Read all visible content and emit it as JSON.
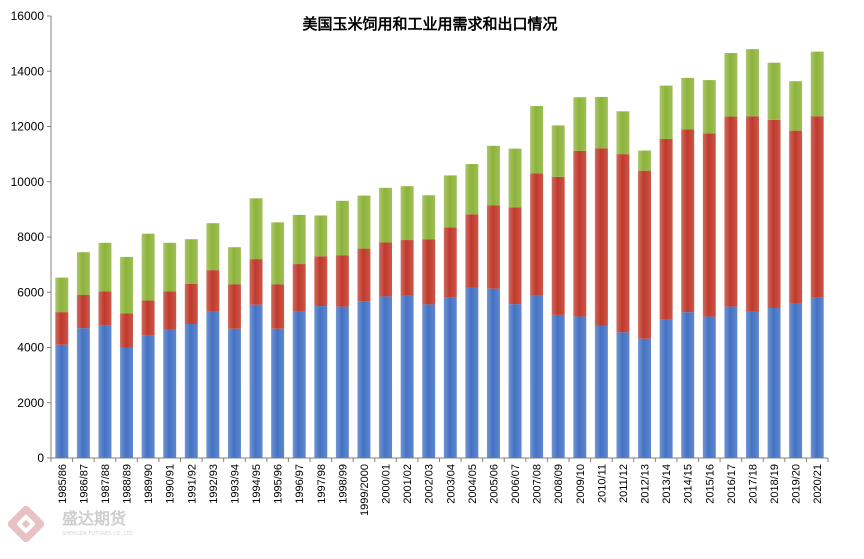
{
  "chart_data": {
    "type": "bar",
    "stacked": true,
    "title": "美国玉米饲用和工业用需求和出口情况",
    "xlabel": "",
    "ylabel": "",
    "ylim": [
      0,
      16000
    ],
    "yticks": [
      0,
      2000,
      4000,
      6000,
      8000,
      10000,
      12000,
      14000,
      16000
    ],
    "grid": false,
    "legend": "none",
    "categories": [
      "1985/86",
      "1986/87",
      "1987/88",
      "1988/89",
      "1989/90",
      "1990/91",
      "1991/92",
      "1992/93",
      "1993/94",
      "1994/95",
      "1995/96",
      "1996/97",
      "1997/98",
      "1998/99",
      "1999/2000",
      "2000/01",
      "2001/02",
      "2002/03",
      "2003/04",
      "2004/05",
      "2005/06",
      "2006/07",
      "2007/08",
      "2008/09",
      "2009/10",
      "2010/11",
      "2011/12",
      "2012/13",
      "2013/14",
      "2014/15",
      "2015/16",
      "2016/17",
      "2017/18",
      "2018/19",
      "2019/20",
      "2020/21"
    ],
    "series": [
      {
        "color": "#4472c4",
        "values": [
          4100,
          4700,
          4800,
          4000,
          4450,
          4650,
          4850,
          5300,
          4680,
          5550,
          4680,
          5300,
          5500,
          5480,
          5680,
          5850,
          5870,
          5560,
          5800,
          6170,
          6130,
          5570,
          5900,
          5180,
          5120,
          4780,
          4550,
          4320,
          5030,
          5280,
          5120,
          5480,
          5300,
          5430,
          5580,
          5800
        ]
      },
      {
        "color": "#c0392b",
        "values": [
          1180,
          1200,
          1230,
          1230,
          1250,
          1380,
          1450,
          1500,
          1600,
          1650,
          1600,
          1720,
          1800,
          1850,
          1900,
          1950,
          2020,
          2350,
          2550,
          2650,
          3010,
          3500,
          4400,
          5000,
          6000,
          6430,
          6450,
          6080,
          6520,
          6620,
          6630,
          6880,
          7070,
          6810,
          6270,
          6570
        ]
      },
      {
        "color": "#8db33a",
        "values": [
          1250,
          1550,
          1760,
          2050,
          2420,
          1760,
          1620,
          1700,
          1350,
          2200,
          2250,
          1780,
          1480,
          1980,
          1920,
          1980,
          1950,
          1600,
          1880,
          1820,
          2160,
          2130,
          2440,
          1860,
          1940,
          1860,
          1550,
          730,
          1930,
          1860,
          1930,
          2300,
          2430,
          2070,
          1790,
          2340
        ]
      }
    ]
  },
  "watermark": {
    "brand": "盛达期货",
    "sub": "SHENGDA FUTURES CO.,LTD."
  }
}
